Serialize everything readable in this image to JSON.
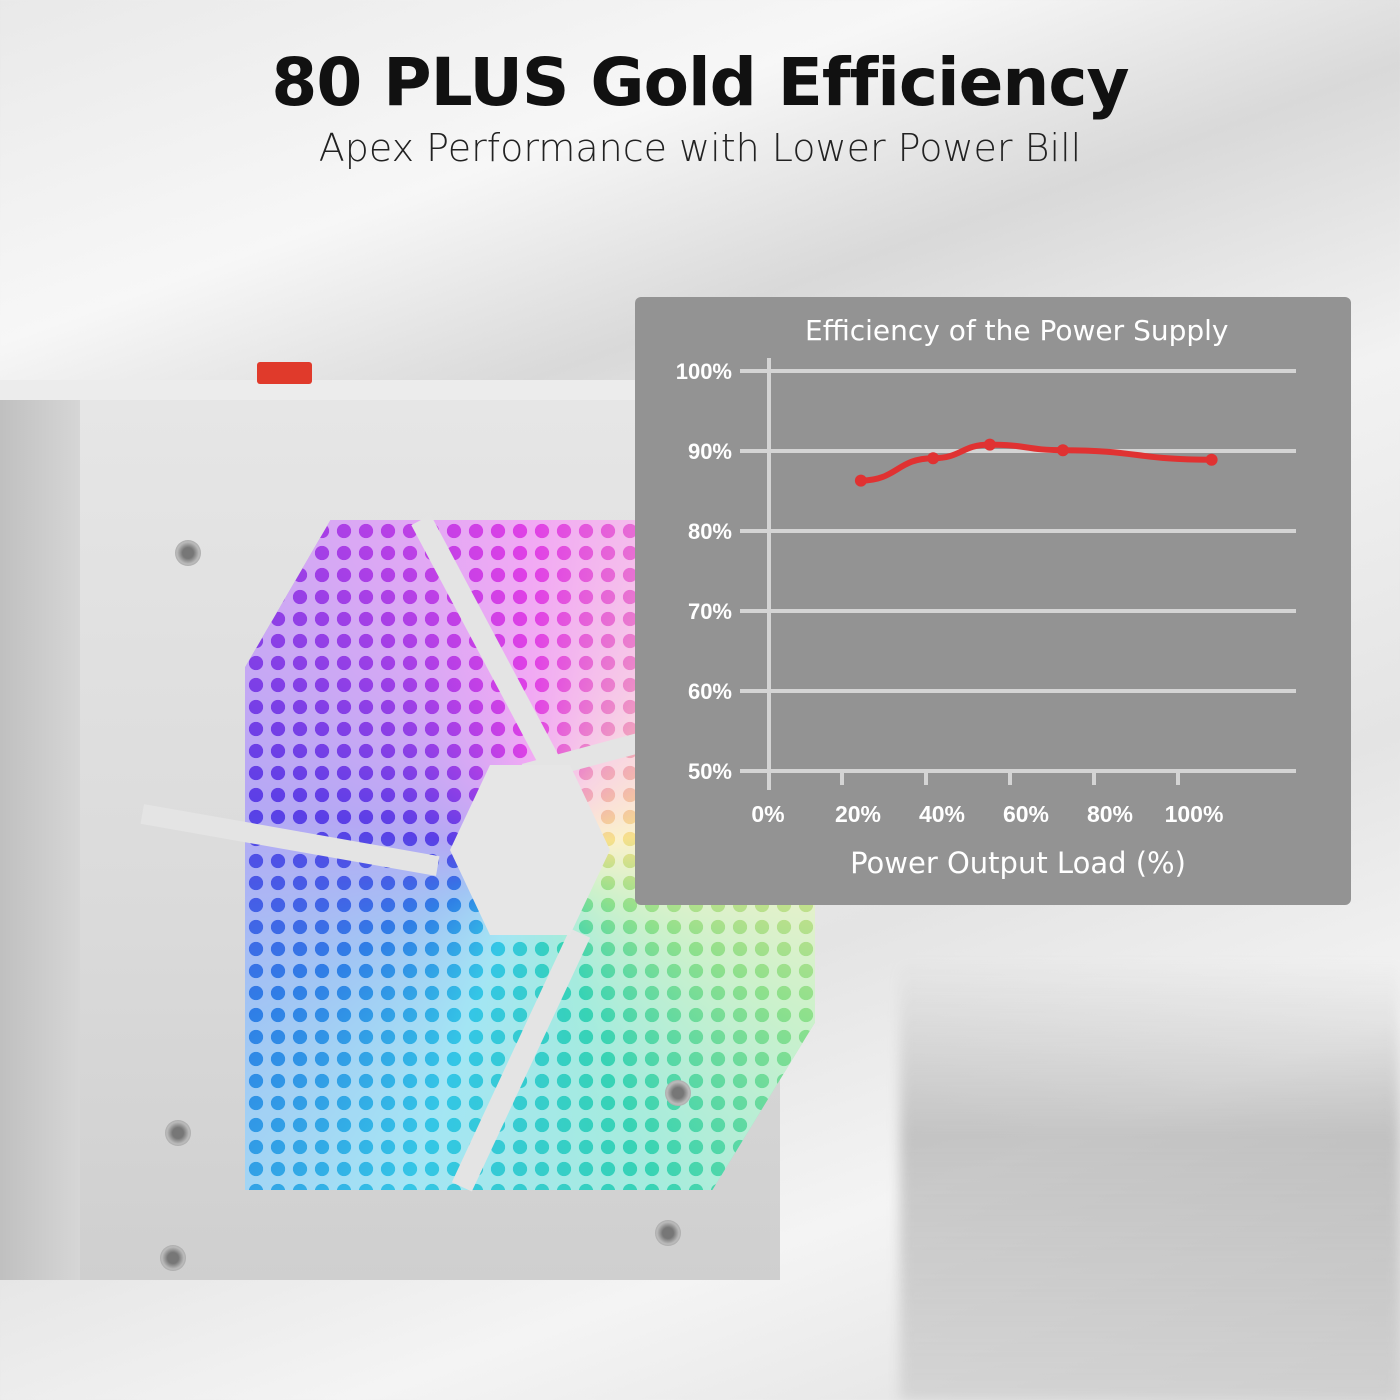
{
  "header": {
    "title": "80 PLUS Gold Efficiency",
    "subtitle": "Apex Performance with Lower Power Bill"
  },
  "product": {
    "icon": "psu-with-rgb-fan",
    "accent": "#e03a2b"
  },
  "chart_data": {
    "type": "line",
    "title": "Efficiency of the Power Supply",
    "xlabel": "Power Output Load (%)",
    "ylabel": "",
    "x_ticks": [
      "0%",
      "20%",
      "40%",
      "60%",
      "80%",
      "100%"
    ],
    "y_ticks": [
      "50%",
      "60%",
      "70%",
      "80%",
      "90%",
      "100%"
    ],
    "xlim": [
      0,
      120
    ],
    "ylim": [
      50,
      100
    ],
    "grid": "horizontal",
    "series": [
      {
        "color": "#e03232",
        "x": [
          24.5,
          41.7,
          55.2,
          72.6,
          108
        ],
        "y": [
          86.3,
          89.1,
          90.8,
          90.1,
          88.9
        ]
      }
    ],
    "background": "#939393"
  }
}
